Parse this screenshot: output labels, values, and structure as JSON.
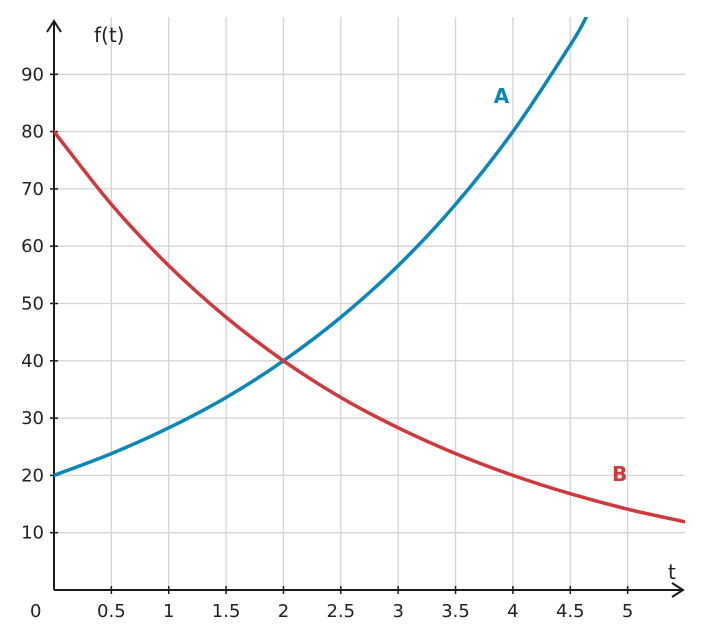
{
  "chart_data": {
    "type": "line",
    "xlabel": "t",
    "ylabel": "f(t)",
    "origin_label": "0",
    "xlim": [
      0,
      5.5
    ],
    "ylim": [
      0,
      100
    ],
    "x_ticks": [
      0.5,
      1,
      1.5,
      2,
      2.5,
      3,
      3.5,
      4,
      4.5,
      5
    ],
    "x_tick_labels": [
      "0.5",
      "1",
      "1.5",
      "2",
      "2.5",
      "3",
      "3.5",
      "4",
      "4.5",
      "5"
    ],
    "y_ticks": [
      10,
      20,
      30,
      40,
      50,
      60,
      70,
      80,
      90
    ],
    "y_tick_labels": [
      "10",
      "20",
      "30",
      "40",
      "50",
      "60",
      "70",
      "80",
      "90"
    ],
    "grid": true,
    "series": [
      {
        "name": "A",
        "color": "#0a86b8",
        "x": [
          0,
          0.5,
          1,
          1.5,
          2,
          2.5,
          3,
          3.5,
          4,
          4.5,
          4.64
        ],
        "y": [
          20,
          23.8,
          28.3,
          33.6,
          40,
          47.6,
          56.6,
          67.3,
          80,
          95.1,
          100
        ]
      },
      {
        "name": "B",
        "color": "#d0393c",
        "x": [
          0,
          0.5,
          1,
          1.5,
          2,
          2.5,
          3,
          3.5,
          4,
          4.5,
          5,
          5.5
        ],
        "y": [
          80,
          67.3,
          56.6,
          47.6,
          40,
          33.6,
          28.3,
          23.8,
          20,
          16.8,
          14.1,
          11.9
        ]
      }
    ],
    "annotations": [
      {
        "text": "A",
        "x": 3.9,
        "y": 85,
        "color": "#0a86b8"
      },
      {
        "text": "B",
        "x": 4.93,
        "y": 19,
        "color": "#d0393c"
      }
    ]
  }
}
